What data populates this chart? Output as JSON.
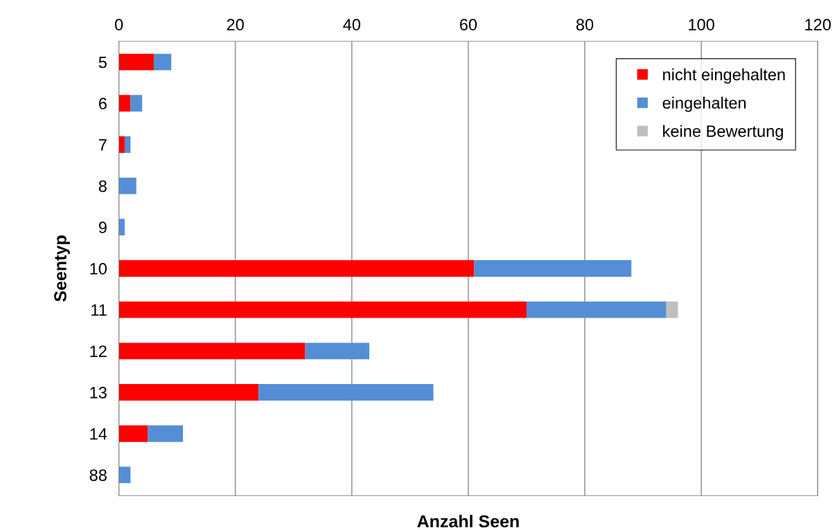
{
  "chart_data": {
    "type": "bar",
    "orientation": "horizontal",
    "stacked": true,
    "xlabel": "Anzahl Seen",
    "ylabel": "Seentyp",
    "categories": [
      "5",
      "6",
      "7",
      "8",
      "9",
      "10",
      "11",
      "12",
      "13",
      "14",
      "88"
    ],
    "series": [
      {
        "name": "nicht eingehalten",
        "color": "#ff0000",
        "values": [
          6,
          2,
          1,
          0,
          0,
          61,
          70,
          32,
          24,
          5,
          0
        ]
      },
      {
        "name": "eingehalten",
        "color": "#558ed5",
        "values": [
          3,
          2,
          1,
          3,
          1,
          27,
          24,
          11,
          30,
          6,
          2
        ]
      },
      {
        "name": "keine Bewertung",
        "color": "#bfbfbf",
        "values": [
          0,
          0,
          0,
          0,
          0,
          0,
          2,
          0,
          0,
          0,
          0
        ]
      }
    ],
    "xlim": [
      0,
      120
    ],
    "xticks": [
      0,
      20,
      40,
      60,
      80,
      100,
      120
    ],
    "grid": "x",
    "legend": "top right"
  }
}
